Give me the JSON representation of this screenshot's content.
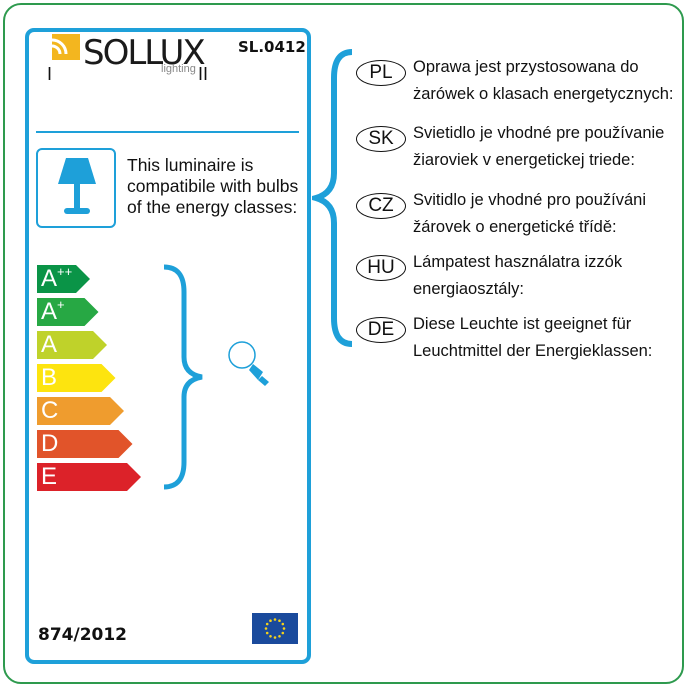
{
  "brand": {
    "name": "SOLLUX",
    "tagline": "lighting"
  },
  "model": "SL.0412",
  "header_marks": [
    "I",
    "II"
  ],
  "compat_text": [
    "This luminaire is",
    "compatibile with bulbs",
    "of the energy classes:"
  ],
  "energy_classes": [
    {
      "label": "A",
      "sup": "++",
      "color": "#0a9447"
    },
    {
      "label": "A",
      "sup": "+",
      "color": "#27a844"
    },
    {
      "label": "A",
      "sup": "",
      "color": "#bfd22a"
    },
    {
      "label": "B",
      "sup": "",
      "color": "#fde40f"
    },
    {
      "label": "C",
      "sup": "",
      "color": "#ef9c2e"
    },
    {
      "label": "D",
      "sup": "",
      "color": "#e1542a"
    },
    {
      "label": "E",
      "sup": "",
      "color": "#dc2229"
    }
  ],
  "regulation": "874/2012",
  "languages": [
    {
      "code": "PL",
      "lines": [
        "Oprawa jest przystosowana do",
        "żarówek o klasach energetycznych:"
      ]
    },
    {
      "code": "SK",
      "lines": [
        "Svietidlo je vhodné pre používanie",
        "žiaroviek v energetickej triede:"
      ]
    },
    {
      "code": "CZ",
      "lines": [
        "Svitidlo je vhodné pro používáni",
        "žárovek o energetické třídě:"
      ]
    },
    {
      "code": "HU",
      "lines": [
        "Lámpatest használatra izzók",
        "energiaosztály:"
      ]
    },
    {
      "code": "DE",
      "lines": [
        "Diese Leuchte ist geeignet für",
        "Leuchtmittel der Energieklassen:"
      ]
    }
  ],
  "colors": {
    "accent": "#1ea0d9",
    "border": "#2e9a4e",
    "eu_blue": "#1a4a9c",
    "eu_star": "#f5d21a"
  }
}
